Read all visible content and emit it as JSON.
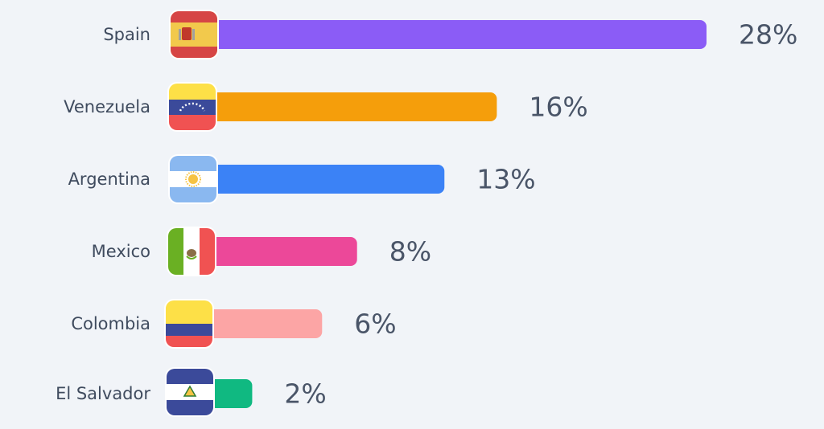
{
  "chart_data": {
    "type": "bar",
    "orientation": "horizontal",
    "categories": [
      "Spain",
      "Venezuela",
      "Argentina",
      "Mexico",
      "Colombia",
      "El Salvador"
    ],
    "values": [
      28,
      16,
      13,
      8,
      6,
      2
    ],
    "value_labels": [
      "28%",
      "16%",
      "13%",
      "8%",
      "6%",
      "2%"
    ],
    "colors": [
      "#8b5cf6",
      "#f59e0b",
      "#3b82f6",
      "#ec4899",
      "#fca5a5",
      "#10b981"
    ]
  }
}
